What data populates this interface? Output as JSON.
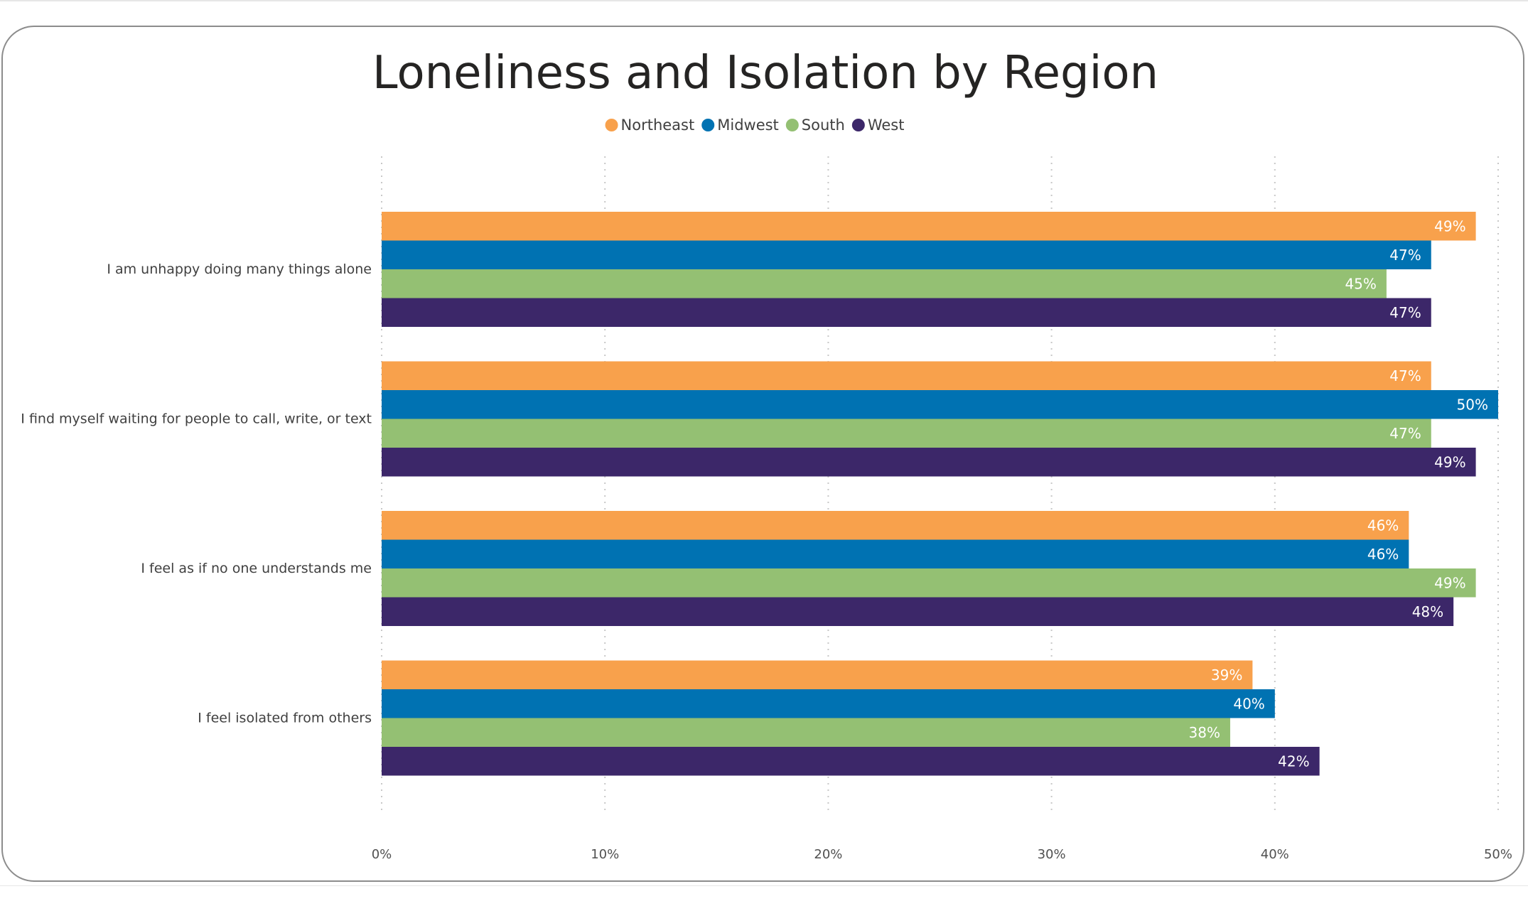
{
  "chart_data": {
    "type": "bar",
    "orientation": "horizontal",
    "title": "Loneliness and Isolation by Region",
    "categories": [
      "I am unhappy doing many things alone",
      "I find myself waiting for people to call, write, or text",
      "I feel as if no one understands me",
      "I feel isolated from others"
    ],
    "series": [
      {
        "name": "Northeast",
        "color": "#F8A14C",
        "label_color": "#FFFFFF",
        "values": [
          49,
          47,
          46,
          39
        ]
      },
      {
        "name": "Midwest",
        "color": "#0072B2",
        "label_color": "#FFFFFF",
        "values": [
          47,
          50,
          46,
          40
        ]
      },
      {
        "name": "South",
        "color": "#94C073",
        "label_color": "#FFFFFF",
        "values": [
          45,
          47,
          49,
          38
        ]
      },
      {
        "name": "West",
        "color": "#3C2769",
        "label_color": "#FFFFFF",
        "values": [
          47,
          49,
          48,
          42
        ]
      }
    ],
    "data_labels": [
      [
        "49%",
        "47%",
        "45%",
        "47%"
      ],
      [
        "47%",
        "50%",
        "47%",
        "49%"
      ],
      [
        "46%",
        "46%",
        "49%",
        "48%"
      ],
      [
        "39%",
        "40%",
        "38%",
        "42%"
      ]
    ],
    "xticks": [
      0,
      10,
      20,
      30,
      40,
      50
    ],
    "xtick_labels": [
      "0%",
      "10%",
      "20%",
      "30%",
      "40%",
      "50%"
    ],
    "xlim": [
      0,
      50
    ],
    "grid": "vertical-dotted",
    "legend_position": "top-center"
  }
}
